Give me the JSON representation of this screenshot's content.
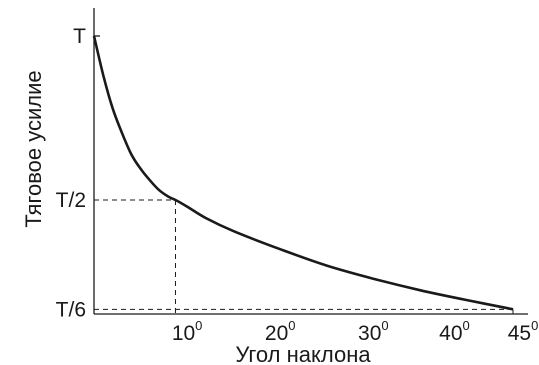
{
  "chart_data": {
    "type": "line",
    "title": "",
    "xlabel": "Угол наклона",
    "ylabel": "Тяговое усилие",
    "xlim": [
      0,
      45
    ],
    "y_tick_labels": [
      {
        "label": "T",
        "value": 1.0
      },
      {
        "label": "T/2",
        "value": 0.5
      },
      {
        "label": "T/6",
        "value": 0.1667
      }
    ],
    "x_tick_labels": [
      {
        "base": "10",
        "sup": "0",
        "value": 10
      },
      {
        "base": "20",
        "sup": "0",
        "value": 20
      },
      {
        "base": "30",
        "sup": "0",
        "value": 30
      },
      {
        "base": "40",
        "sup": "0",
        "value": 40
      },
      {
        "base": "45",
        "sup": "0",
        "value": 45
      }
    ],
    "series": [
      {
        "x": [
          0,
          1,
          2,
          3,
          4,
          5,
          6,
          7,
          8,
          8.75,
          10,
          12,
          15,
          20,
          25,
          30,
          35,
          40,
          45
        ],
        "y": [
          1.0,
          0.88,
          0.78,
          0.705,
          0.64,
          0.595,
          0.56,
          0.53,
          0.51,
          0.5,
          0.48,
          0.445,
          0.405,
          0.35,
          0.3,
          0.26,
          0.225,
          0.195,
          0.1667
        ]
      }
    ],
    "guides": [
      {
        "x": 8.75,
        "y": 0.5
      },
      {
        "x": 45,
        "y": 0.1667
      }
    ],
    "grid": false,
    "legend": "none"
  }
}
